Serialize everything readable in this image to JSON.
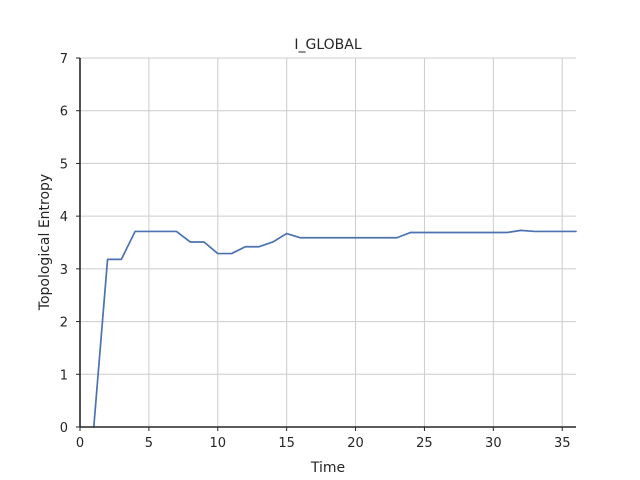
{
  "chart_data": {
    "type": "line",
    "title": "I_GLOBAL",
    "xlabel": "Time",
    "ylabel": "Topological Entropy",
    "xlim": [
      0,
      36
    ],
    "ylim": [
      0,
      7
    ],
    "xticks": [
      0,
      5,
      10,
      15,
      20,
      25,
      30,
      35
    ],
    "yticks": [
      0,
      1,
      2,
      3,
      4,
      5,
      6,
      7
    ],
    "grid": true,
    "legend": "none",
    "series": [
      {
        "color": "#4c72b0",
        "x": [
          1,
          2,
          3,
          4,
          5,
          6,
          7,
          8,
          9,
          10,
          11,
          12,
          13,
          14,
          15,
          16,
          17,
          18,
          19,
          20,
          21,
          22,
          23,
          24,
          25,
          26,
          27,
          28,
          29,
          30,
          31,
          32,
          33,
          34,
          35,
          36
        ],
        "y": [
          0,
          3.18,
          3.18,
          3.71,
          3.71,
          3.71,
          3.71,
          3.51,
          3.51,
          3.29,
          3.29,
          3.42,
          3.42,
          3.51,
          3.67,
          3.59,
          3.59,
          3.59,
          3.59,
          3.59,
          3.59,
          3.59,
          3.59,
          3.69,
          3.69,
          3.69,
          3.69,
          3.69,
          3.69,
          3.69,
          3.69,
          3.73,
          3.71,
          3.71,
          3.71,
          3.71
        ]
      }
    ]
  }
}
